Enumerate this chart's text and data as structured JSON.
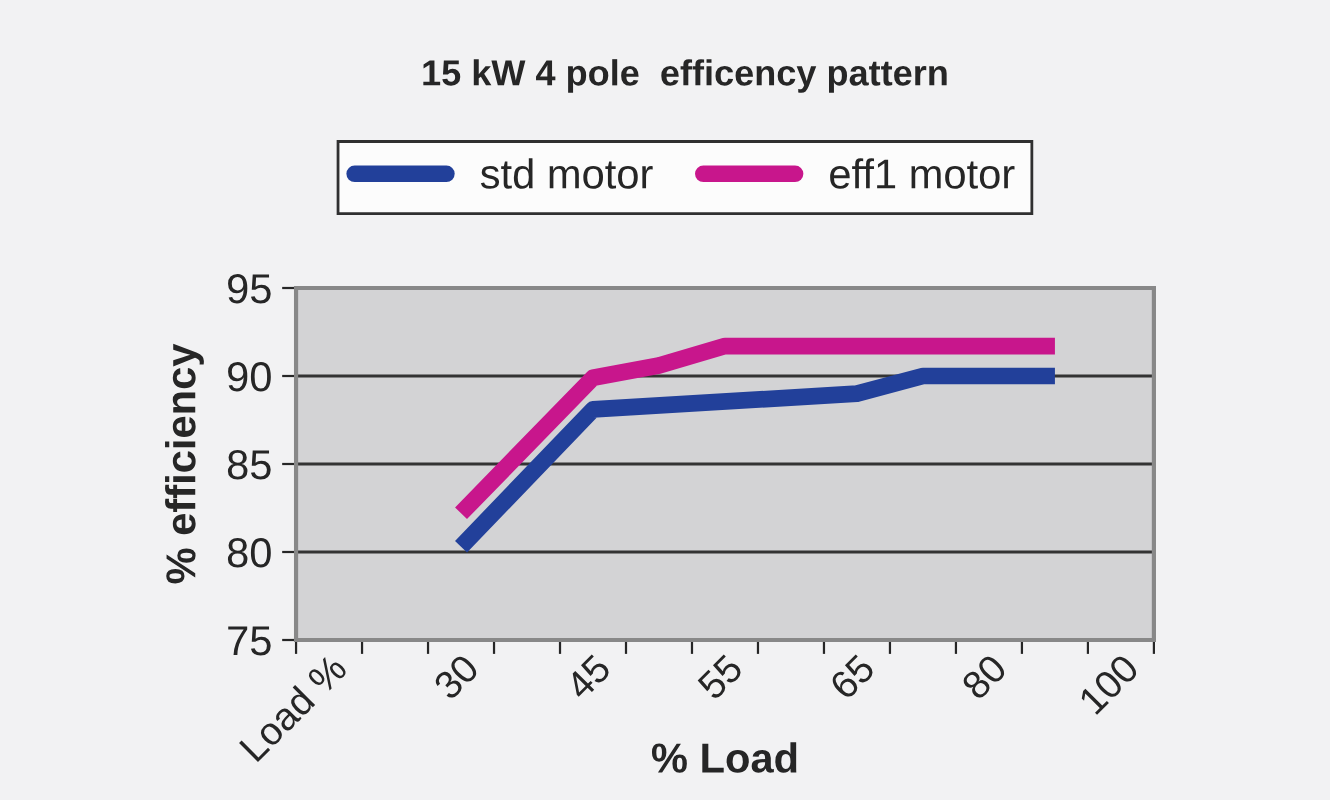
{
  "chart_data": {
    "type": "line",
    "title": "15 kW 4 pole  efficency pattern",
    "xlabel": "% Load",
    "ylabel": "% efficiency",
    "categories": [
      "Load %",
      null,
      "30",
      null,
      "45",
      null,
      "55",
      null,
      "65",
      null,
      "80",
      null,
      "100"
    ],
    "series": [
      {
        "name": "std motor",
        "color": "#22409a",
        "values": [
          null,
          null,
          80.3,
          null,
          88.1,
          null,
          null,
          null,
          89.0,
          90.0,
          null,
          90.0,
          null
        ]
      },
      {
        "name": "eff1 motor",
        "color": "#c8168c",
        "values": [
          null,
          null,
          82.2,
          null,
          89.9,
          90.6,
          91.7,
          null,
          null,
          null,
          null,
          91.7,
          null
        ]
      }
    ],
    "ylim": [
      75,
      95
    ],
    "yticks": [
      75,
      80,
      85,
      90,
      95
    ],
    "grid": "y",
    "legend": "top",
    "marker": "none",
    "line_style": "solid"
  }
}
